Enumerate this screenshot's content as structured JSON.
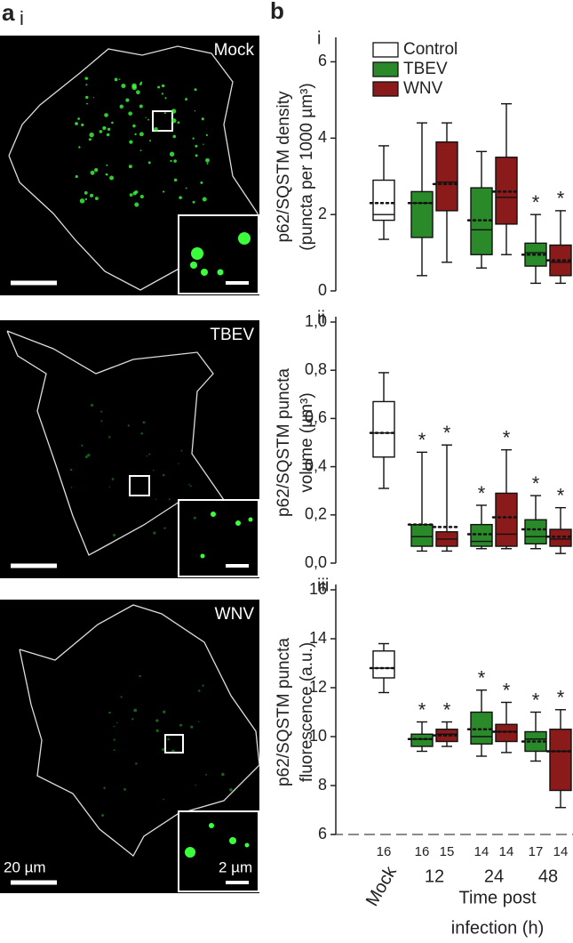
{
  "images": {
    "panel_letter": "a",
    "panel_roman": "i",
    "cells": [
      {
        "label": "Mock"
      },
      {
        "label": "TBEV"
      },
      {
        "label": "WNV",
        "scale_bar": "20 µm",
        "inset_scale_bar": "2 µm"
      }
    ]
  },
  "panel_letter": "b",
  "xlabel": [
    "Time post",
    "infection (h)"
  ],
  "categories": [
    "Mock",
    "12",
    "24",
    "48"
  ],
  "chart_data": [
    {
      "type": "box",
      "panel": "i",
      "ylabel": [
        "p62/SQSTM density",
        "(puncta per 1000 µm³)"
      ],
      "ylim": [
        0,
        6.5
      ],
      "yticks": [
        0,
        2,
        4,
        6
      ],
      "legend": "upper left",
      "series": [
        {
          "name": "Control",
          "color": "#ffffff",
          "boxes": [
            {
              "category": "Mock",
              "whisker_low": 1.35,
              "q1": 1.85,
              "median": 2.0,
              "q3": 2.9,
              "whisker_high": 3.8,
              "mean": 2.3
            }
          ]
        },
        {
          "name": "TBEV",
          "color": "#2a8a2a",
          "boxes": [
            {
              "category": "12",
              "whisker_low": 0.4,
              "q1": 1.4,
              "median": 2.3,
              "q3": 2.6,
              "whisker_high": 4.4,
              "mean": 2.3
            },
            {
              "category": "24",
              "whisker_low": 0.6,
              "q1": 0.95,
              "median": 1.6,
              "q3": 2.7,
              "whisker_high": 3.65,
              "mean": 1.85
            },
            {
              "category": "48",
              "whisker_low": 0.2,
              "q1": 0.65,
              "median": 1.0,
              "q3": 1.25,
              "whisker_high": 2.0,
              "mean": 0.95,
              "sig": "*"
            }
          ]
        },
        {
          "name": "WNV",
          "color": "#8b1a1a",
          "boxes": [
            {
              "category": "12",
              "whisker_low": 0.75,
              "q1": 2.1,
              "median": 2.85,
              "q3": 3.9,
              "whisker_high": 4.4,
              "mean": 2.8
            },
            {
              "category": "24",
              "whisker_low": 0.95,
              "q1": 1.75,
              "median": 2.45,
              "q3": 3.5,
              "whisker_high": 4.9,
              "mean": 2.6
            },
            {
              "category": "48",
              "whisker_low": 0.2,
              "q1": 0.4,
              "median": 0.75,
              "q3": 1.2,
              "whisker_high": 2.1,
              "mean": 0.8,
              "sig": "*"
            }
          ]
        }
      ]
    },
    {
      "type": "box",
      "panel": "ii",
      "ylabel": [
        "p62/SQSTM puncta",
        "volume (µm³)"
      ],
      "ylim": [
        0,
        1.0
      ],
      "yticks": [
        {
          "value": 0,
          "label": "0,0"
        },
        {
          "value": 0.2,
          "label": "0,2"
        },
        {
          "value": 0.4,
          "label": "0,4"
        },
        {
          "value": 0.6,
          "label": "0,6"
        },
        {
          "value": 0.8,
          "label": "0,8"
        },
        {
          "value": 1.0,
          "label": "1,0"
        }
      ],
      "series": [
        {
          "name": "Control",
          "color": "#ffffff",
          "boxes": [
            {
              "category": "Mock",
              "whisker_low": 0.31,
              "q1": 0.44,
              "median": 0.54,
              "q3": 0.67,
              "whisker_high": 0.79,
              "mean": 0.54
            }
          ]
        },
        {
          "name": "TBEV",
          "color": "#2a8a2a",
          "boxes": [
            {
              "category": "12",
              "whisker_low": 0.05,
              "q1": 0.07,
              "median": 0.11,
              "q3": 0.16,
              "whisker_high": 0.46,
              "mean": 0.16,
              "sig": "*"
            },
            {
              "category": "24",
              "whisker_low": 0.06,
              "q1": 0.07,
              "median": 0.09,
              "q3": 0.16,
              "whisker_high": 0.24,
              "mean": 0.12,
              "sig": "*"
            },
            {
              "category": "48",
              "whisker_low": 0.06,
              "q1": 0.08,
              "median": 0.11,
              "q3": 0.18,
              "whisker_high": 0.28,
              "mean": 0.14,
              "sig": "*"
            }
          ]
        },
        {
          "name": "WNV",
          "color": "#8b1a1a",
          "boxes": [
            {
              "category": "12",
              "whisker_low": 0.05,
              "q1": 0.07,
              "median": 0.1,
              "q3": 0.13,
              "whisker_high": 0.49,
              "mean": 0.15,
              "sig": "*"
            },
            {
              "category": "24",
              "whisker_low": 0.06,
              "q1": 0.07,
              "median": 0.12,
              "q3": 0.29,
              "whisker_high": 0.47,
              "mean": 0.19,
              "sig": "*"
            },
            {
              "category": "48",
              "whisker_low": 0.04,
              "q1": 0.07,
              "median": 0.1,
              "q3": 0.14,
              "whisker_high": 0.23,
              "mean": 0.11,
              "sig": "*"
            }
          ]
        }
      ]
    },
    {
      "type": "box",
      "panel": "iii",
      "ylabel": [
        "p62/SQSTM puncta",
        "fluorescence (a.u.)"
      ],
      "ylim": [
        6,
        16
      ],
      "yticks": [
        6,
        8,
        10,
        12,
        14,
        16
      ],
      "x_axis": "dashed",
      "series": [
        {
          "name": "Control",
          "color": "#ffffff",
          "boxes": [
            {
              "category": "Mock",
              "whisker_low": 11.8,
              "q1": 12.4,
              "median": 12.8,
              "q3": 13.5,
              "whisker_high": 13.8,
              "mean": 12.8,
              "n": 16
            }
          ]
        },
        {
          "name": "TBEV",
          "color": "#2a8a2a",
          "boxes": [
            {
              "category": "12",
              "whisker_low": 9.4,
              "q1": 9.6,
              "median": 9.9,
              "q3": 10.1,
              "whisker_high": 10.6,
              "mean": 9.9,
              "sig": "*",
              "n": 16
            },
            {
              "category": "24",
              "whisker_low": 9.2,
              "q1": 9.7,
              "median": 10.0,
              "q3": 11.0,
              "whisker_high": 11.9,
              "mean": 10.3,
              "sig": "*",
              "n": 14
            },
            {
              "category": "48",
              "whisker_low": 9.0,
              "q1": 9.4,
              "median": 9.9,
              "q3": 10.2,
              "whisker_high": 11.0,
              "mean": 9.8,
              "sig": "*",
              "n": 17
            }
          ]
        },
        {
          "name": "WNV",
          "color": "#8b1a1a",
          "boxes": [
            {
              "category": "12",
              "whisker_low": 9.6,
              "q1": 9.8,
              "median": 10.1,
              "q3": 10.3,
              "whisker_high": 10.6,
              "mean": 10.05,
              "sig": "*",
              "n": 15
            },
            {
              "category": "24",
              "whisker_low": 9.35,
              "q1": 9.8,
              "median": 10.2,
              "q3": 10.5,
              "whisker_high": 11.4,
              "mean": 10.2,
              "sig": "*",
              "n": 14
            },
            {
              "category": "48",
              "whisker_low": 7.1,
              "q1": 7.8,
              "median": 9.4,
              "q3": 10.3,
              "whisker_high": 11.1,
              "mean": 9.4,
              "sig": "*",
              "n": 14
            }
          ]
        }
      ]
    }
  ]
}
